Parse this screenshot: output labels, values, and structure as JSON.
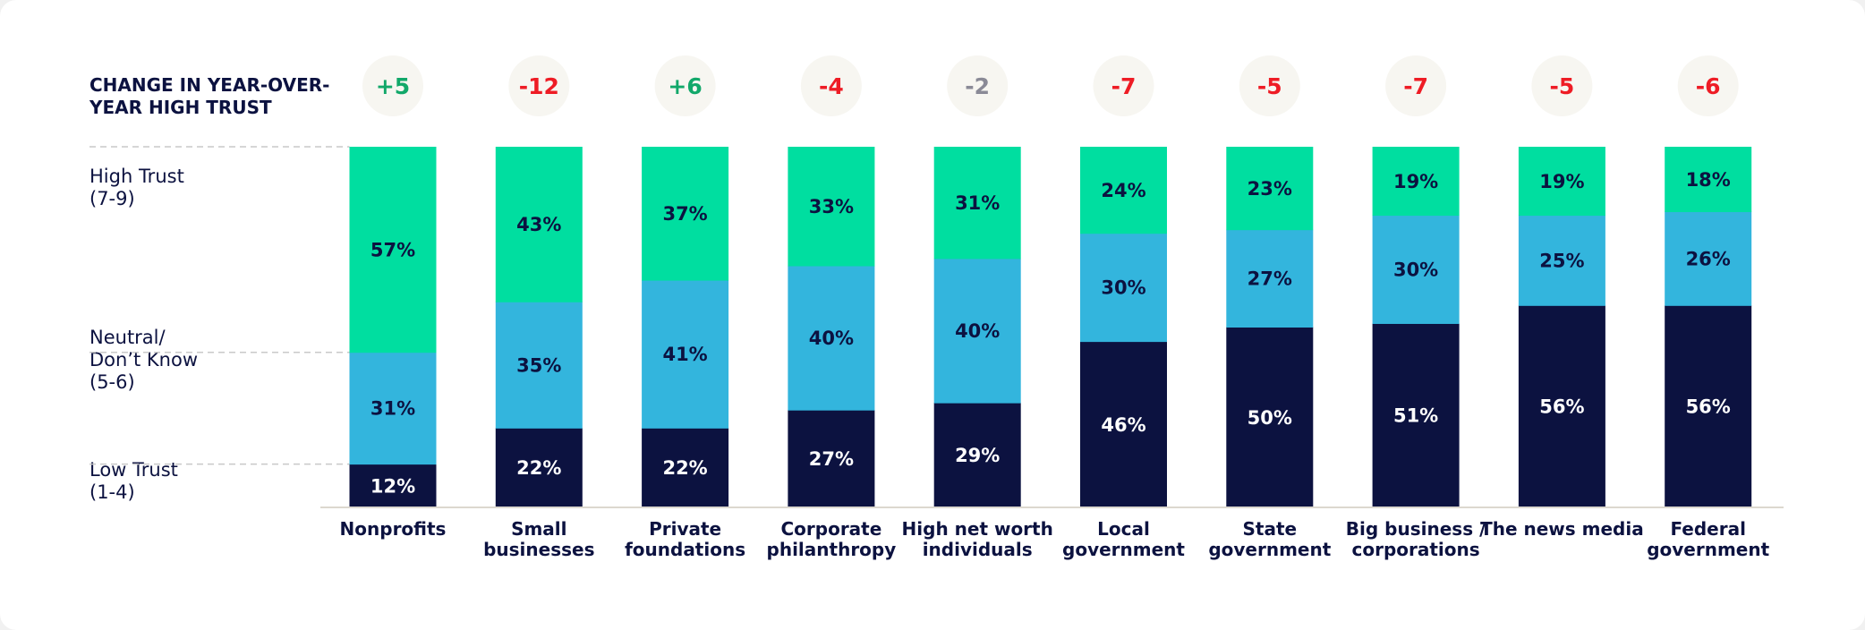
{
  "header_lines": [
    "CHANGE IN YEAR-OVER-",
    "YEAR HIGH TRUST"
  ],
  "row_labels": [
    {
      "lines": [
        "High Trust",
        "(7-9)"
      ]
    },
    {
      "lines": [
        "Neutral/",
        "Don’t Know",
        "(5-6)"
      ]
    },
    {
      "lines": [
        "Low Trust",
        "(1-4)"
      ]
    }
  ],
  "colors": {
    "high": "#00dea0",
    "neutral": "#33b5dd",
    "low": "#0c1240",
    "positive_change": "#12a86a",
    "negative_change": "#ee1c25",
    "neutral_change": "#8a8a96",
    "change_circle": "#f7f6f1"
  },
  "chart_data": {
    "type": "bar",
    "stacked": true,
    "categories": [
      [
        "Nonprofits"
      ],
      [
        "Small",
        "businesses"
      ],
      [
        "Private",
        "foundations"
      ],
      [
        "Corporate",
        "philanthropy"
      ],
      [
        "High net worth",
        "individuals"
      ],
      [
        "Local",
        "government"
      ],
      [
        "State",
        "government"
      ],
      [
        "Big business /",
        "corporations"
      ],
      [
        "The news media"
      ],
      [
        "Federal",
        "government"
      ]
    ],
    "series": [
      {
        "key": "low",
        "values": [
          12,
          22,
          22,
          27,
          29,
          46,
          50,
          51,
          56,
          56
        ],
        "labels": [
          "12%",
          "22%",
          "22%",
          "27%",
          "29%",
          "46%",
          "50%",
          "51%",
          "56%",
          "56%"
        ]
      },
      {
        "key": "neutral",
        "values": [
          31,
          35,
          41,
          40,
          40,
          30,
          27,
          30,
          25,
          26
        ],
        "labels": [
          "31%",
          "35%",
          "41%",
          "40%",
          "40%",
          "30%",
          "27%",
          "30%",
          "25%",
          "26%"
        ]
      },
      {
        "key": "high",
        "values": [
          57,
          43,
          37,
          33,
          31,
          24,
          23,
          19,
          19,
          18
        ],
        "labels": [
          "57%",
          "43%",
          "37%",
          "33%",
          "31%",
          "24%",
          "23%",
          "19%",
          "19%",
          "18%"
        ]
      }
    ],
    "change": {
      "labels": [
        "+5",
        "-12",
        "+6",
        "-4",
        "-2",
        "-7",
        "-5",
        "-7",
        "-5",
        "-6"
      ],
      "values": [
        5,
        -12,
        6,
        -4,
        -2,
        -7,
        -5,
        -7,
        -5,
        -6
      ],
      "tone": [
        "positive",
        "negative",
        "positive",
        "negative",
        "neutral",
        "negative",
        "negative",
        "negative",
        "negative",
        "negative"
      ]
    },
    "ylim": [
      0,
      100
    ],
    "grid": false,
    "legend": "left"
  }
}
